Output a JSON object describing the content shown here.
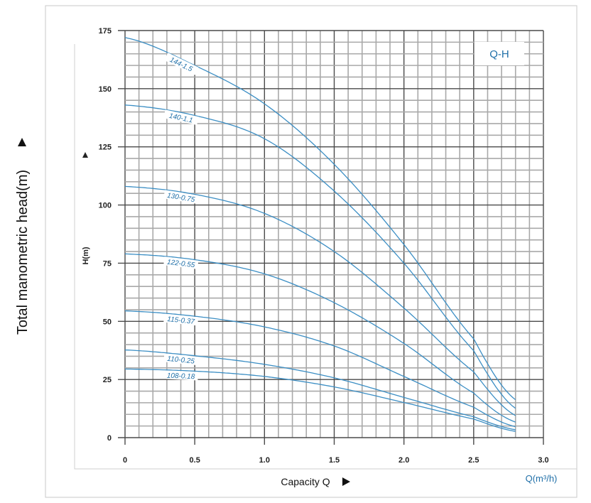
{
  "chart_data": {
    "type": "line",
    "title": "Q-H",
    "xlabel": "Capacity Q",
    "xunit": "Q(m³/h)",
    "ylabel": "Total manometric head(m)",
    "ylabel_inner": "H(m)",
    "xlim": [
      0,
      3.0
    ],
    "ylim": [
      0,
      175
    ],
    "x_ticks": [
      "0",
      "0.5",
      "1.0",
      "1.5",
      "2.0",
      "2.5",
      "3.0"
    ],
    "y_ticks": [
      "0",
      "25",
      "50",
      "75",
      "100",
      "125",
      "150",
      "175"
    ],
    "grid": true,
    "x": [
      0,
      0.5,
      1.0,
      1.5,
      2.0,
      2.5,
      2.8
    ],
    "series": [
      {
        "name": "144-1.5",
        "values": [
          172,
          160,
          143.5,
          117.5,
          83,
          42.5,
          16.3
        ]
      },
      {
        "name": "140-1.1",
        "values": [
          143,
          138.5,
          128.5,
          106,
          75,
          37.4,
          12.6
        ]
      },
      {
        "name": "130-0.75",
        "values": [
          108,
          104.6,
          96.4,
          80,
          55.7,
          28.3,
          9.5
        ]
      },
      {
        "name": "122-0.55",
        "values": [
          79,
          76.5,
          70.4,
          58,
          40.5,
          19.2,
          6.7
        ]
      },
      {
        "name": "115-0.37",
        "values": [
          54.5,
          52.2,
          47.6,
          39.4,
          26.3,
          13.1,
          4.7
        ]
      },
      {
        "name": "110-0.25",
        "values": [
          37.7,
          35.2,
          31.5,
          25.7,
          17.3,
          9,
          3.4
        ]
      },
      {
        "name": "108-0.18",
        "values": [
          29.5,
          28.6,
          26.3,
          21.8,
          15.1,
          8,
          2.7
        ]
      }
    ],
    "colors": {
      "curve": "#3b8ec4",
      "label": "#1f6fa8",
      "grid_minor": "#a9a9a9",
      "grid_major": "#4a4a4a"
    }
  }
}
